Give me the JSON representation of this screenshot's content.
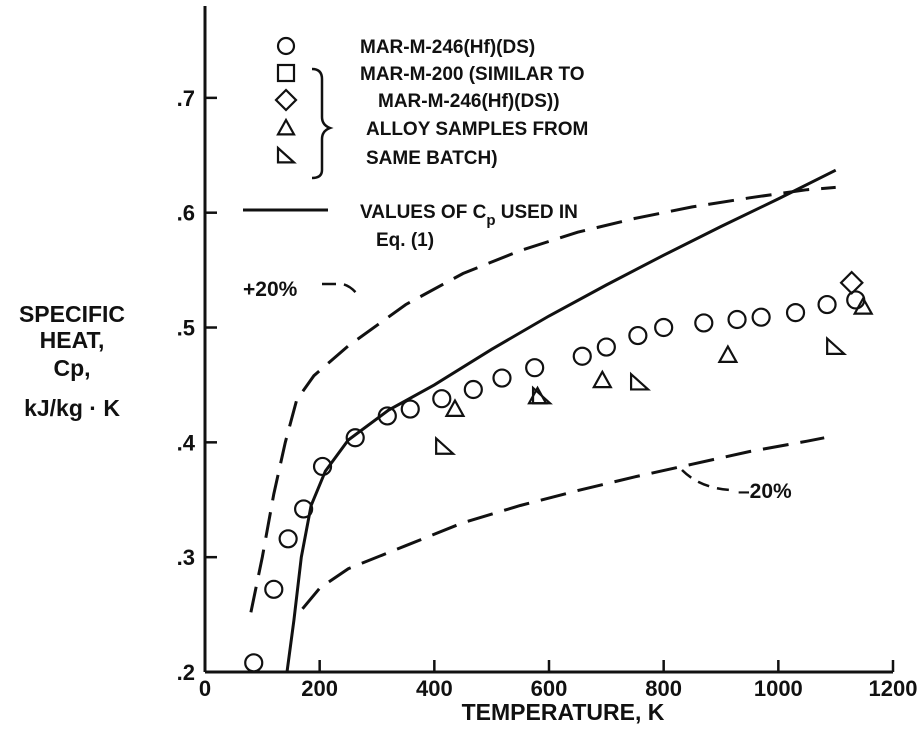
{
  "chart_data": {
    "type": "scatter",
    "xlabel": "TEMPERATURE, K",
    "ylabel_lines": [
      "SPECIFIC",
      "HEAT,",
      "Cp,",
      "kJ/kg · K"
    ],
    "xlim": [
      0,
      1200
    ],
    "ylim": [
      0.2,
      0.78
    ],
    "x_ticks": [
      {
        "value": 0,
        "label": "0"
      },
      {
        "value": 200,
        "label": "200"
      },
      {
        "value": 400,
        "label": "400"
      },
      {
        "value": 600,
        "label": "600"
      },
      {
        "value": 800,
        "label": "800"
      },
      {
        "value": 1000,
        "label": "1000"
      },
      {
        "value": 1200,
        "label": "1200"
      }
    ],
    "y_ticks": [
      {
        "value": 0.2,
        "label": ".2"
      },
      {
        "value": 0.3,
        "label": ".3"
      },
      {
        "value": 0.4,
        "label": ".4"
      },
      {
        "value": 0.5,
        "label": ".5"
      },
      {
        "value": 0.6,
        "label": ".6"
      },
      {
        "value": 0.7,
        "label": ".7"
      }
    ],
    "grid": false,
    "legend_position": "top-center",
    "legend_lines": [
      {
        "marker": "circle",
        "text": "MAR-M-246(Hf)(DS)"
      },
      {
        "marker": "square",
        "text": "MAR-M-200 (SIMILAR TO"
      },
      {
        "marker": "diamond",
        "text": "MAR-M-246(Hf)(DS))"
      },
      {
        "marker": "triangle",
        "text": "ALLOY SAMPLES FROM"
      },
      {
        "marker": "right-triangle",
        "text": "SAME BATCH)"
      }
    ],
    "legend_line_label": {
      "line1": "VALUES OF C",
      "sub": "p",
      "line1_suffix": " USED IN",
      "line2": "Eq. (1)"
    },
    "annotations": {
      "plus": "+20%",
      "minus": "–20%"
    },
    "series": [
      {
        "marker": "circle",
        "points": [
          [
            85,
            0.208
          ],
          [
            120,
            0.272
          ],
          [
            145,
            0.316
          ],
          [
            172,
            0.342
          ],
          [
            205,
            0.379
          ],
          [
            262,
            0.404
          ],
          [
            318,
            0.423
          ],
          [
            358,
            0.429
          ],
          [
            413,
            0.438
          ],
          [
            468,
            0.446
          ],
          [
            518,
            0.456
          ],
          [
            575,
            0.465
          ],
          [
            658,
            0.475
          ],
          [
            700,
            0.483
          ],
          [
            755,
            0.493
          ],
          [
            800,
            0.5
          ],
          [
            870,
            0.504
          ],
          [
            928,
            0.507
          ],
          [
            970,
            0.509
          ],
          [
            1030,
            0.513
          ],
          [
            1085,
            0.52
          ],
          [
            1135,
            0.524
          ]
        ]
      },
      {
        "marker": "diamond",
        "points": [
          [
            1128,
            0.539
          ]
        ]
      },
      {
        "marker": "triangle",
        "points": [
          [
            436,
            0.429
          ],
          [
            580,
            0.44
          ],
          [
            693,
            0.454
          ],
          [
            912,
            0.476
          ],
          [
            1148,
            0.518
          ]
        ]
      },
      {
        "marker": "right-triangle",
        "points": [
          [
            418,
            0.396
          ],
          [
            587,
            0.44
          ],
          [
            758,
            0.452
          ],
          [
            1100,
            0.483
          ]
        ]
      }
    ],
    "curves": [
      {
        "style": "solid",
        "points": [
          [
            143,
            0.2
          ],
          [
            155,
            0.245
          ],
          [
            168,
            0.3
          ],
          [
            185,
            0.345
          ],
          [
            210,
            0.375
          ],
          [
            250,
            0.402
          ],
          [
            320,
            0.428
          ],
          [
            400,
            0.45
          ],
          [
            500,
            0.481
          ],
          [
            600,
            0.51
          ],
          [
            700,
            0.537
          ],
          [
            800,
            0.563
          ],
          [
            900,
            0.588
          ],
          [
            1000,
            0.612
          ],
          [
            1100,
            0.637
          ]
        ]
      },
      {
        "style": "dashed",
        "points": [
          [
            80,
            0.252
          ],
          [
            100,
            0.3
          ],
          [
            120,
            0.355
          ],
          [
            140,
            0.4
          ],
          [
            160,
            0.437
          ],
          [
            190,
            0.458
          ],
          [
            250,
            0.484
          ],
          [
            350,
            0.52
          ],
          [
            450,
            0.547
          ],
          [
            550,
            0.567
          ],
          [
            650,
            0.583
          ],
          [
            750,
            0.595
          ],
          [
            850,
            0.605
          ],
          [
            950,
            0.613
          ],
          [
            1050,
            0.62
          ],
          [
            1100,
            0.622
          ]
        ]
      },
      {
        "style": "dashed",
        "points": [
          [
            170,
            0.255
          ],
          [
            200,
            0.273
          ],
          [
            250,
            0.29
          ],
          [
            350,
            0.31
          ],
          [
            450,
            0.33
          ],
          [
            550,
            0.345
          ],
          [
            650,
            0.358
          ],
          [
            750,
            0.37
          ],
          [
            850,
            0.381
          ],
          [
            950,
            0.392
          ],
          [
            1050,
            0.401
          ],
          [
            1080,
            0.404
          ]
        ]
      }
    ]
  }
}
